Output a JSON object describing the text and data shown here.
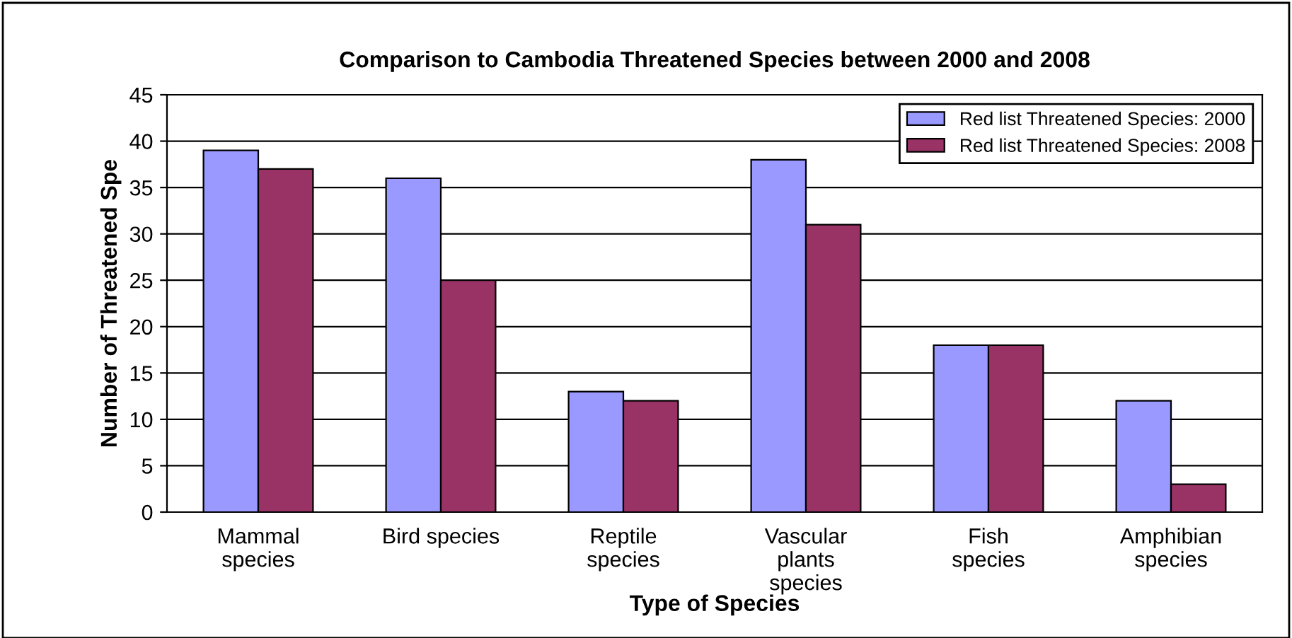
{
  "chart_data": {
    "type": "bar",
    "title": "Comparison to Cambodia Threatened Species between 2000 and 2008",
    "xlabel": "Type of Species",
    "ylabel": "Number of Threatened Spe",
    "categories": [
      "Mammal\nspecies",
      "Bird species",
      "Reptile\nspecies",
      "Vascular\nplants\nspecies",
      "Fish\nspecies",
      "Amphibian\nspecies"
    ],
    "series": [
      {
        "name": "Red list Threatened Species: 2000",
        "color": "#9999ff",
        "values": [
          39,
          36,
          13,
          38,
          18,
          12
        ]
      },
      {
        "name": "Red list Threatened Species: 2008",
        "color": "#993366",
        "values": [
          37,
          25,
          12,
          31,
          18,
          3
        ]
      }
    ],
    "ylim": [
      0,
      45
    ],
    "yticks": [
      0,
      5,
      10,
      15,
      20,
      25,
      30,
      35,
      40,
      45
    ],
    "grid": "y",
    "legend": "top right"
  }
}
